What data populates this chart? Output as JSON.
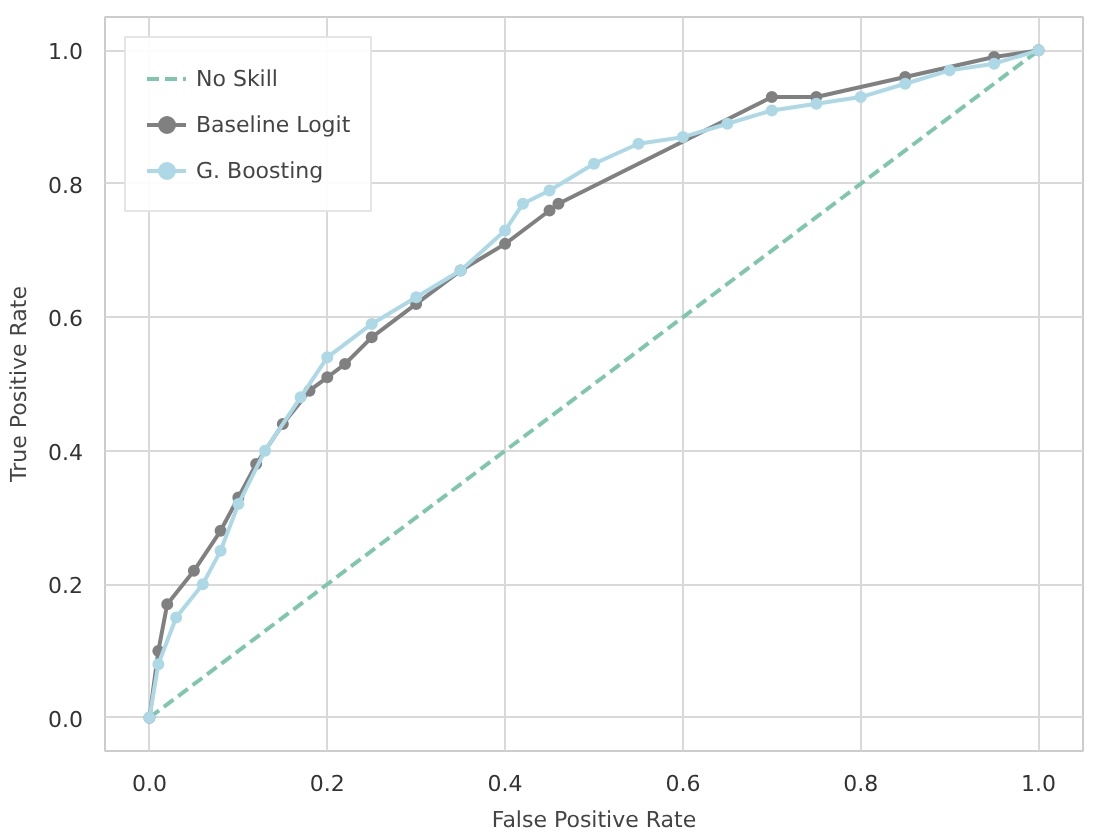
{
  "chart_data": {
    "type": "line",
    "xlabel": "False Positive Rate",
    "ylabel": "True Positive Rate",
    "xlim": [
      -0.05,
      1.05
    ],
    "ylim": [
      -0.05,
      1.05
    ],
    "xticks": [
      {
        "value": 0,
        "label": "0.0"
      },
      0.2,
      0.4,
      0.6,
      0.8,
      {
        "value": 1,
        "label": "1.0"
      }
    ],
    "yticks": [
      {
        "value": 0,
        "label": "0.0"
      },
      0.2,
      0.4,
      0.6,
      0.8,
      {
        "value": 1,
        "label": "1.0"
      }
    ],
    "grid": true,
    "legend": "top left",
    "series": [
      {
        "name": "No Skill",
        "color": "#7fc7ac",
        "line_style": "dashed",
        "marker": "none",
        "x": [
          0,
          1
        ],
        "values": [
          0,
          1
        ]
      },
      {
        "name": "Baseline Logit",
        "color": "#808080",
        "line_style": "solid",
        "marker": "circle",
        "x": [
          0,
          0.01,
          0.02,
          0.05,
          0.08,
          0.1,
          0.12,
          0.15,
          0.18,
          0.2,
          0.22,
          0.25,
          0.3,
          0.35,
          0.4,
          0.45,
          0.46,
          0.7,
          0.75,
          0.85,
          0.95,
          1
        ],
        "values": [
          0,
          0.1,
          0.17,
          0.22,
          0.28,
          0.33,
          0.38,
          0.44,
          0.49,
          0.51,
          0.53,
          0.57,
          0.62,
          0.67,
          0.71,
          0.76,
          0.77,
          0.93,
          0.93,
          0.96,
          0.99,
          1
        ]
      },
      {
        "name": "G. Boosting",
        "color": "#add8e6",
        "line_style": "solid",
        "marker": "circle",
        "x": [
          0,
          0.01,
          0.03,
          0.06,
          0.08,
          0.1,
          0.13,
          0.17,
          0.2,
          0.25,
          0.3,
          0.35,
          0.4,
          0.42,
          0.45,
          0.5,
          0.55,
          0.6,
          0.65,
          0.7,
          0.75,
          0.8,
          0.85,
          0.9,
          0.95,
          1
        ],
        "values": [
          0,
          0.08,
          0.15,
          0.2,
          0.25,
          0.32,
          0.4,
          0.48,
          0.54,
          0.59,
          0.63,
          0.67,
          0.73,
          0.77,
          0.79,
          0.83,
          0.86,
          0.87,
          0.89,
          0.91,
          0.92,
          0.93,
          0.95,
          0.97,
          0.98,
          1
        ]
      }
    ]
  }
}
